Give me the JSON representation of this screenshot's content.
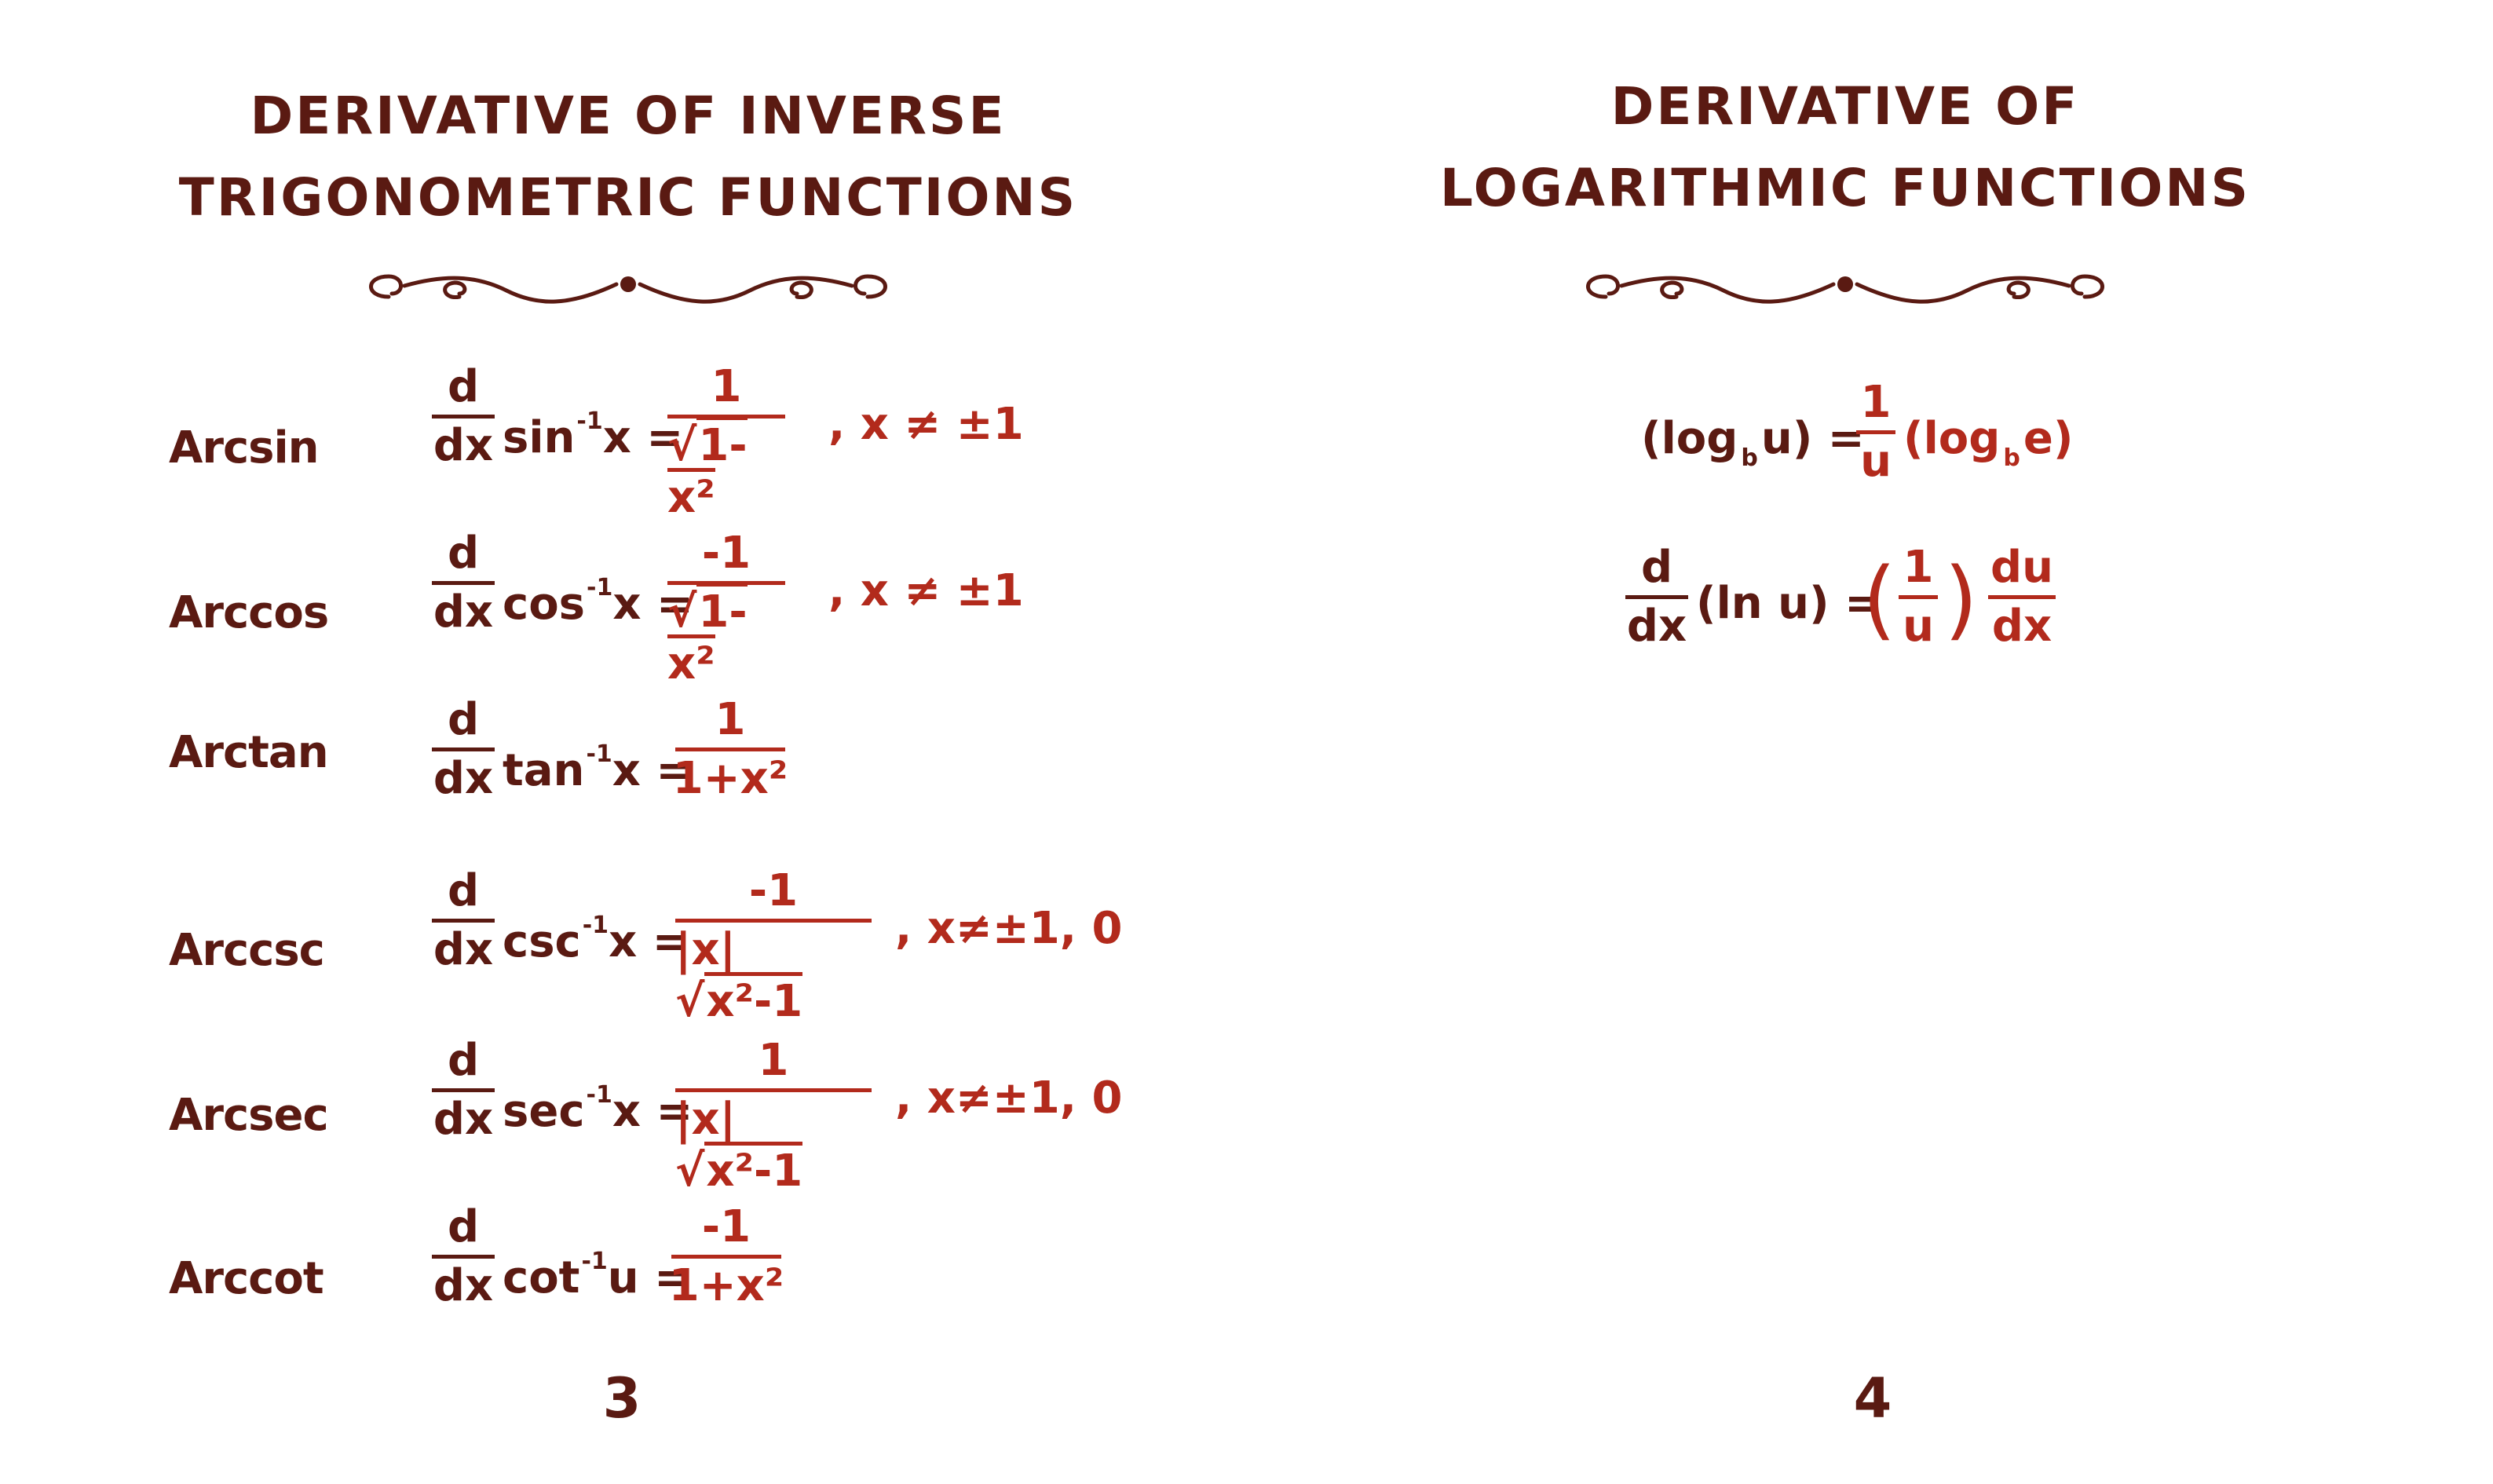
{
  "left_page": {
    "title_line1": "DERIVATIVE OF INVERSE",
    "title_line2": "TRIGONOMETRIC FUNCTIONS",
    "page_number": "3",
    "rows": [
      {
        "name": "Arcsin",
        "d": "d",
        "dx": "dx",
        "func": "sin",
        "exp": "-1",
        "var": "x",
        "eq": "=",
        "num": "1",
        "den_pre": "",
        "den_sqrt": "1-x²",
        "den_plain": "",
        "cond": ",  x ≠ ±1"
      },
      {
        "name": "Arccos",
        "d": "d",
        "dx": "dx",
        "func": "cos",
        "exp": "-1",
        "var": "x",
        "eq": "=",
        "num": "-1",
        "den_pre": "",
        "den_sqrt": "1-x²",
        "den_plain": "",
        "cond": ",  x ≠ ±1"
      },
      {
        "name": "Arctan",
        "d": "d",
        "dx": "dx",
        "func": "tan",
        "exp": "-1",
        "var": "x",
        "eq": "=",
        "num": "1",
        "den_pre": "",
        "den_sqrt": "",
        "den_plain": "1+x²",
        "cond": ""
      },
      {
        "name": "Arccsc",
        "d": "d",
        "dx": "dx",
        "func": "csc",
        "exp": "-1",
        "var": "x",
        "eq": "=",
        "num": "-1",
        "den_pre": "|x|",
        "den_sqrt": "x²-1",
        "den_plain": "",
        "cond": ",  x≠±1, 0"
      },
      {
        "name": "Arcsec",
        "d": "d",
        "dx": "dx",
        "func": "sec",
        "exp": "-1",
        "var": "x",
        "eq": "=",
        "num": "1",
        "den_pre": "|x|",
        "den_sqrt": "x²-1",
        "den_plain": "",
        "cond": ",  x≠±1, 0"
      },
      {
        "name": "Arccot",
        "d": "d",
        "dx": "dx",
        "func": "cot",
        "exp": "-1",
        "var": "u",
        "eq": "=",
        "num": "-1",
        "den_pre": "",
        "den_sqrt": "",
        "den_plain": "1+x²",
        "cond": ""
      }
    ]
  },
  "right_page": {
    "title_line1": "DERIVATIVE OF",
    "title_line2": "LOGARITHMIC FUNCTIONS",
    "page_number": "4",
    "formula1": {
      "lhs_open": "(log",
      "lhs_sub": "b",
      "lhs_close": "u) =",
      "num": "1",
      "den": "u",
      "rhs_open": "(log",
      "rhs_sub": "b",
      "rhs_close": "e)"
    },
    "formula2": {
      "d": "d",
      "dx": "dx",
      "lhs": "(ln u) =",
      "paren_open": "(",
      "paren_close": ")",
      "num": "1",
      "den": "u",
      "du": "du",
      "dx2": "dx"
    }
  },
  "colors": {
    "dark": "#5a1a12",
    "red": "#b22a1c"
  }
}
